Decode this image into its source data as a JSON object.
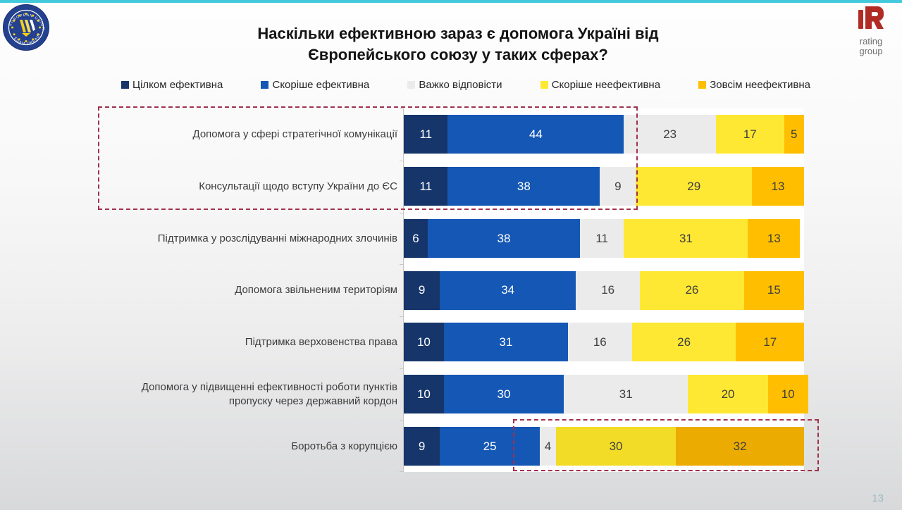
{
  "page": {
    "page_number": "13"
  },
  "header": {
    "title": "Наскільки ефективною зараз є допомога Україні від Європейського союзу у таких сферах?"
  },
  "logos": {
    "euam_ring_top": "EUROPEAN UNION",
    "euam_ring_bottom": "EUAM UKRAINE",
    "rating_line1": "rating",
    "rating_line2": "group"
  },
  "colors": {
    "accent_strip": "#43C9DC",
    "highlight_box": "#A0314F",
    "rating_red": "#B12B25",
    "euam_blue": "#23418F",
    "euam_yellow": "#F5D117"
  },
  "chart_data": {
    "type": "bar",
    "orientation": "horizontal",
    "stacked": true,
    "title": "Наскільки ефективною зараз є допомога Україні від Європейського союзу у таких сферах?",
    "xlim": [
      0,
      100
    ],
    "legend_position": "top",
    "grid": false,
    "categories": [
      "Допомога у сфері стратегічної комунікації",
      "Консультації щодо вступу України до ЄС",
      "Підтримка у розслідуванні міжнародних злочинів",
      "Допомога звільненим територіям",
      "Підтримка верховенства права",
      "Допомога у підвищенні ефективності роботи пунктів пропуску через державний кордон",
      "Боротьба з корупцією"
    ],
    "series": [
      {
        "name": "Цілком ефективна",
        "color": "#16366B",
        "text_color": "#FFFFFF",
        "values": [
          11,
          11,
          6,
          9,
          10,
          10,
          9
        ]
      },
      {
        "name": "Скоріше ефективна",
        "color": "#1557B4",
        "text_color": "#FFFFFF",
        "values": [
          44,
          38,
          38,
          34,
          31,
          30,
          25
        ]
      },
      {
        "name": "Важко відповісти",
        "color": "#EBEBEB",
        "text_color": "#3F3F3F",
        "values": [
          23,
          9,
          11,
          16,
          16,
          31,
          4
        ]
      },
      {
        "name": "Скоріше неефективна",
        "color": "#FFE833",
        "text_color": "#3F3F3F",
        "values": [
          17,
          29,
          31,
          26,
          26,
          20,
          30
        ]
      },
      {
        "name": "Зовсім неефективна",
        "color": "#FFBF00",
        "text_color": "#3F3F3F",
        "values": [
          5,
          13,
          13,
          15,
          17,
          10,
          32
        ]
      }
    ],
    "color_overrides": [
      {
        "row": 6,
        "series": 3,
        "color": "#F2DC28"
      },
      {
        "row": 6,
        "series": 4,
        "color": "#EBAB00"
      }
    ],
    "annotations": [
      {
        "type": "dashed-box",
        "note": "highlights rows 1–2 (labels and blue segments)"
      },
      {
        "type": "dashed-box",
        "note": "highlights negative answers of row 7 (4 / 30 / 32)"
      }
    ]
  }
}
